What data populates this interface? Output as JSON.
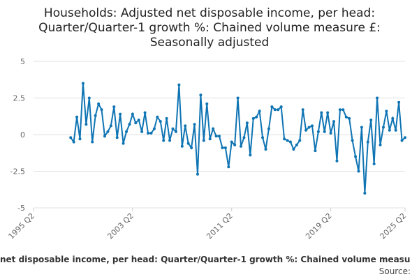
{
  "chart_data": {
    "type": "line",
    "title": "Households: Adjusted net disposable income, per head: Quarter/Quarter-1 growth %: Chained volume measure £: Seasonally adjusted",
    "x_axis_caption": "net disposable income, per head: Quarter/Quarter-1 growth %: Chained volume measu",
    "source": "Source:",
    "x": [
      "1998 Q2",
      "1998 Q3",
      "1998 Q4",
      "1999 Q1",
      "1999 Q2",
      "1999 Q3",
      "1999 Q4",
      "2000 Q1",
      "2000 Q2",
      "2000 Q3",
      "2000 Q4",
      "2001 Q1",
      "2001 Q2",
      "2001 Q3",
      "2001 Q4",
      "2002 Q1",
      "2002 Q2",
      "2002 Q3",
      "2002 Q4",
      "2003 Q1",
      "2003 Q2",
      "2003 Q3",
      "2003 Q4",
      "2004 Q1",
      "2004 Q2",
      "2004 Q3",
      "2004 Q4",
      "2005 Q1",
      "2005 Q2",
      "2005 Q3",
      "2005 Q4",
      "2006 Q1",
      "2006 Q2",
      "2006 Q3",
      "2006 Q4",
      "2007 Q1",
      "2007 Q2",
      "2007 Q3",
      "2007 Q4",
      "2008 Q1",
      "2008 Q2",
      "2008 Q3",
      "2008 Q4",
      "2009 Q1",
      "2009 Q2",
      "2009 Q3",
      "2009 Q4",
      "2010 Q1",
      "2010 Q2",
      "2010 Q3",
      "2010 Q4",
      "2011 Q1",
      "2011 Q2",
      "2011 Q3",
      "2011 Q4",
      "2012 Q1",
      "2012 Q2",
      "2012 Q3",
      "2012 Q4",
      "2013 Q1",
      "2013 Q2",
      "2013 Q3",
      "2013 Q4",
      "2014 Q1",
      "2014 Q2",
      "2014 Q3",
      "2014 Q4",
      "2015 Q1",
      "2015 Q2",
      "2015 Q3",
      "2015 Q4",
      "2016 Q1",
      "2016 Q2",
      "2016 Q3",
      "2016 Q4",
      "2017 Q1",
      "2017 Q2",
      "2017 Q3",
      "2017 Q4",
      "2018 Q1",
      "2018 Q2",
      "2018 Q3",
      "2018 Q4",
      "2019 Q1",
      "2019 Q2",
      "2019 Q3",
      "2019 Q4",
      "2020 Q1",
      "2020 Q2",
      "2020 Q3",
      "2020 Q4",
      "2021 Q1",
      "2021 Q2",
      "2021 Q3",
      "2021 Q4",
      "2022 Q1",
      "2022 Q2",
      "2022 Q3",
      "2022 Q4",
      "2023 Q1",
      "2023 Q2",
      "2023 Q3",
      "2023 Q4",
      "2024 Q1",
      "2024 Q2",
      "2024 Q3",
      "2024 Q4",
      "2025 Q1",
      "2025 Q2"
    ],
    "values": [
      -0.2,
      -0.5,
      1.2,
      -0.3,
      3.5,
      0.7,
      2.5,
      -0.5,
      1.3,
      2.1,
      1.7,
      -0.1,
      0.2,
      0.6,
      1.9,
      -0.2,
      1.4,
      -0.6,
      0.2,
      0.7,
      1.4,
      0.8,
      1.0,
      0.2,
      1.5,
      0.1,
      0.1,
      0.4,
      1.2,
      0.9,
      -0.4,
      1.1,
      -0.4,
      0.4,
      0.2,
      3.4,
      -0.8,
      0.6,
      -0.6,
      -0.9,
      0.7,
      -2.7,
      2.7,
      -0.4,
      2.1,
      -0.3,
      0.4,
      -0.1,
      -0.1,
      -0.9,
      -0.9,
      -2.2,
      -0.5,
      -0.7,
      2.5,
      -0.8,
      -0.2,
      0.8,
      -1.4,
      1.1,
      1.2,
      1.6,
      -0.2,
      -1.0,
      0.4,
      1.9,
      1.7,
      1.7,
      1.9,
      -0.3,
      -0.4,
      -0.5,
      -1.0,
      -0.7,
      -0.4,
      1.7,
      0.3,
      0.5,
      0.6,
      -1.1,
      0.2,
      1.5,
      0.2,
      1.5,
      0.1,
      0.9,
      -1.8,
      1.7,
      1.7,
      1.2,
      1.1,
      -0.4,
      -1.5,
      -2.5,
      0.5,
      -4.0,
      -0.5,
      1.0,
      -2.0,
      2.5,
      -0.7,
      0.5,
      1.6,
      0.3,
      1.1,
      0.3,
      2.2,
      -0.4,
      -0.2
    ],
    "color": "#0f74b3",
    "xlim": [
      "1995 Q2",
      "2025 Q2"
    ],
    "xticks": [
      "1995 Q2",
      "2003 Q2",
      "2011 Q2",
      "2019 Q2",
      "2025 Q2"
    ],
    "ylim": [
      -5,
      5
    ],
    "yticks": [
      -5,
      -2.5,
      0,
      2.5,
      5
    ],
    "grid": true
  }
}
